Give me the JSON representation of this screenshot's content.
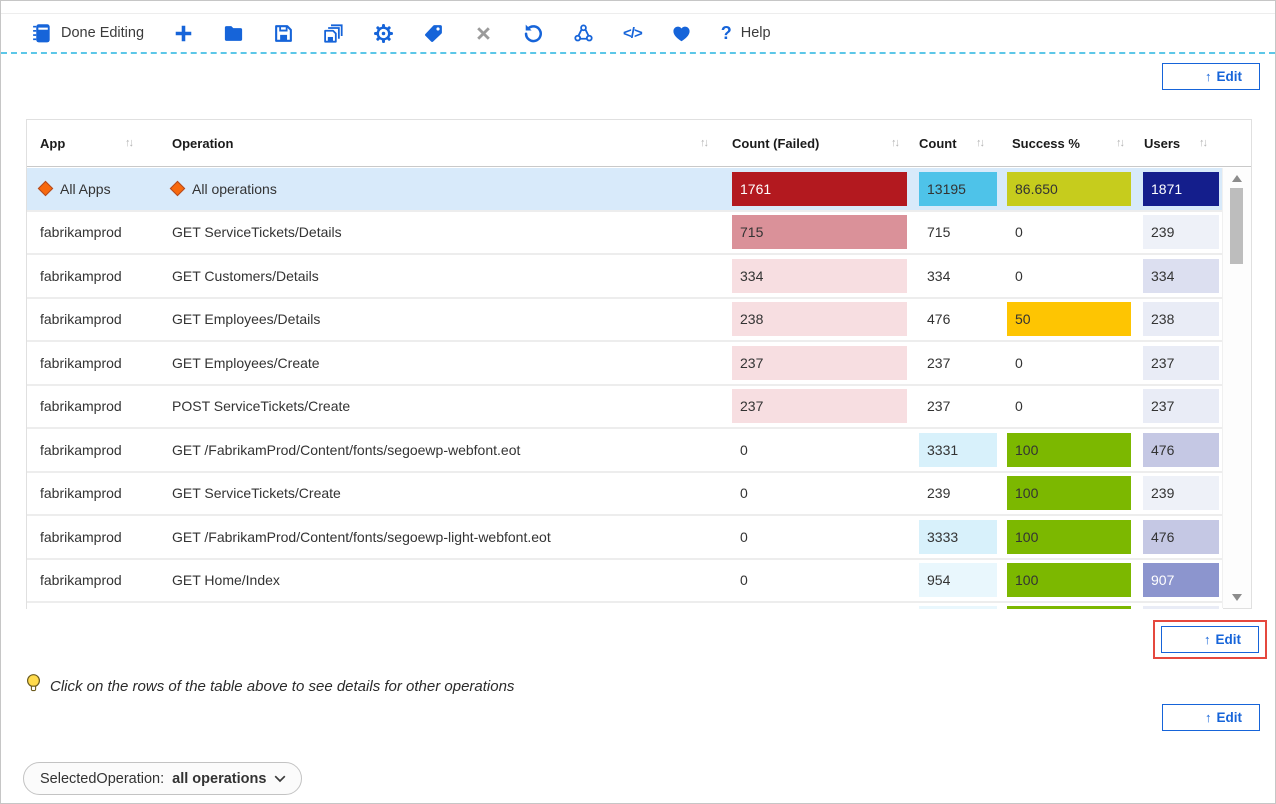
{
  "toolbar": {
    "done_editing_label": "Done Editing",
    "help_label": "Help",
    "icon_color": "#1664d9",
    "icons": [
      "notebook-icon",
      "add-icon",
      "open-folder-icon",
      "save-icon",
      "save-all-icon",
      "settings-icon",
      "tag-icon",
      "close-icon",
      "refresh-icon",
      "share-icon",
      "code-icon",
      "heart-icon",
      "help-icon"
    ]
  },
  "edit_button": {
    "label": "Edit",
    "arrow": "↑"
  },
  "table": {
    "sort_glyph": "↑↓",
    "headers": [
      {
        "key": "app",
        "label": "App"
      },
      {
        "key": "operation",
        "label": "Operation"
      },
      {
        "key": "count_failed",
        "label": "Count (Failed)"
      },
      {
        "key": "count",
        "label": "Count"
      },
      {
        "key": "success",
        "label": "Success %"
      },
      {
        "key": "users",
        "label": "Users"
      }
    ],
    "rows": [
      {
        "app": "All Apps",
        "operation": "All operations",
        "selected": true,
        "diamonds": true,
        "cells": {
          "count_failed": {
            "value": "1761",
            "bg": "#b3191f",
            "fg": "#ffffff"
          },
          "count": {
            "value": "13195",
            "bg": "#4ec3e9"
          },
          "success": {
            "value": "86.650",
            "bg": "#c6cc1d"
          },
          "users": {
            "value": "1871",
            "bg": "#141e8c",
            "fg": "#ffffff"
          }
        }
      },
      {
        "app": "fabrikamprod",
        "operation": "GET ServiceTickets/Details",
        "cells": {
          "count_failed": {
            "value": "715",
            "bg": "#da9199"
          },
          "count": {
            "value": "715"
          },
          "success": {
            "value": "0"
          },
          "users": {
            "value": "239",
            "bg": "#eef1f8"
          }
        }
      },
      {
        "app": "fabrikamprod",
        "operation": "GET Customers/Details",
        "cells": {
          "count_failed": {
            "value": "334",
            "bg": "#f7dee1"
          },
          "count": {
            "value": "334"
          },
          "success": {
            "value": "0"
          },
          "users": {
            "value": "334",
            "bg": "#dcdff0"
          }
        }
      },
      {
        "app": "fabrikamprod",
        "operation": "GET Employees/Details",
        "cells": {
          "count_failed": {
            "value": "238",
            "bg": "#f7dee1"
          },
          "count": {
            "value": "476"
          },
          "success": {
            "value": "50",
            "bg": "#fec502"
          },
          "users": {
            "value": "238",
            "bg": "#e9ecf6"
          }
        }
      },
      {
        "app": "fabrikamprod",
        "operation": "GET Employees/Create",
        "cells": {
          "count_failed": {
            "value": "237",
            "bg": "#f7dee1"
          },
          "count": {
            "value": "237"
          },
          "success": {
            "value": "0"
          },
          "users": {
            "value": "237",
            "bg": "#e9ecf6"
          }
        }
      },
      {
        "app": "fabrikamprod",
        "operation": "POST ServiceTickets/Create",
        "cells": {
          "count_failed": {
            "value": "237",
            "bg": "#f7dee1"
          },
          "count": {
            "value": "237"
          },
          "success": {
            "value": "0"
          },
          "users": {
            "value": "237",
            "bg": "#e9ecf6"
          }
        }
      },
      {
        "app": "fabrikamprod",
        "operation": "GET /FabrikamProd/Content/fonts/segoewp-webfont.eot",
        "cells": {
          "count_failed": {
            "value": "0"
          },
          "count": {
            "value": "3331",
            "bg": "#d8f1fb"
          },
          "success": {
            "value": "100",
            "bg": "#7cb800"
          },
          "users": {
            "value": "476",
            "bg": "#c5c8e4"
          }
        }
      },
      {
        "app": "fabrikamprod",
        "operation": "GET ServiceTickets/Create",
        "cells": {
          "count_failed": {
            "value": "0"
          },
          "count": {
            "value": "239"
          },
          "success": {
            "value": "100",
            "bg": "#7cb800"
          },
          "users": {
            "value": "239",
            "bg": "#eef1f8"
          }
        }
      },
      {
        "app": "fabrikamprod",
        "operation": "GET /FabrikamProd/Content/fonts/segoewp-light-webfont.eot",
        "cells": {
          "count_failed": {
            "value": "0"
          },
          "count": {
            "value": "3333",
            "bg": "#d8f1fb"
          },
          "success": {
            "value": "100",
            "bg": "#7cb800"
          },
          "users": {
            "value": "476",
            "bg": "#c5c8e4"
          }
        }
      },
      {
        "app": "fabrikamprod",
        "operation": "GET Home/Index",
        "cells": {
          "count_failed": {
            "value": "0"
          },
          "count": {
            "value": "954",
            "bg": "#e9f7fd"
          },
          "success": {
            "value": "100",
            "bg": "#7cb800"
          },
          "users": {
            "value": "907",
            "bg": "#8c95ce",
            "fg": "#ffffff"
          }
        }
      },
      {
        "app": "",
        "operation": "",
        "partial": true,
        "cells": {
          "count_failed": {
            "value": ""
          },
          "count": {
            "value": "",
            "bg": "#e9f7fd"
          },
          "success": {
            "value": "",
            "bg": "#7cb800"
          },
          "users": {
            "value": "",
            "bg": "#e9ecf6"
          }
        }
      }
    ]
  },
  "tip": {
    "text": "Click on the rows of the table above to see details for other operations"
  },
  "param_pill": {
    "label": "SelectedOperation:",
    "value": "all operations"
  }
}
